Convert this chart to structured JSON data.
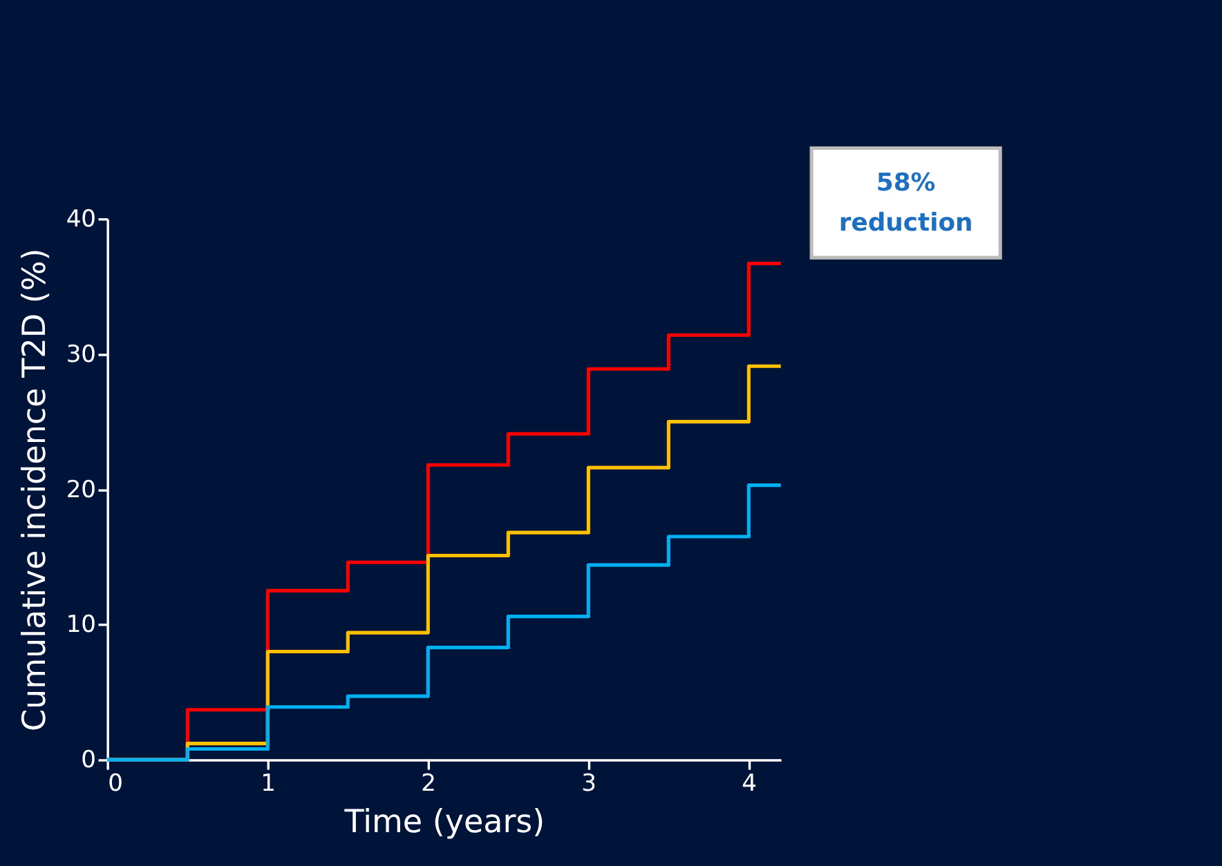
{
  "chart_data": {
    "type": "step",
    "xlabel": "Time (years)",
    "ylabel": "Cumulative incidence T2D (%)",
    "annotations": [
      "58% reduction"
    ],
    "x": [
      0,
      0.5,
      1,
      1.5,
      2,
      2.5,
      3,
      3.5,
      4,
      4.2
    ],
    "series": [
      {
        "color": "#ff0000",
        "values": [
          0,
          3.7,
          12.5,
          14.6,
          21.8,
          24.1,
          28.9,
          31.4,
          36.7,
          36.7
        ]
      },
      {
        "color": "#ffc000",
        "values": [
          0,
          1.2,
          8.0,
          9.4,
          15.1,
          16.8,
          21.6,
          25.0,
          29.1,
          29.1
        ]
      },
      {
        "color": "#00b0f0",
        "values": [
          0,
          0.8,
          3.9,
          4.7,
          8.3,
          10.6,
          14.4,
          16.5,
          20.3,
          20.3
        ]
      }
    ],
    "xlim": [
      0,
      4.2
    ],
    "xticks": [
      0,
      1,
      2,
      3,
      4
    ],
    "ylim": [
      0,
      40
    ],
    "yticks": [
      0,
      10,
      20,
      30,
      40
    ],
    "grid": false,
    "legend": false,
    "line_style": "solid",
    "marker": "none"
  }
}
